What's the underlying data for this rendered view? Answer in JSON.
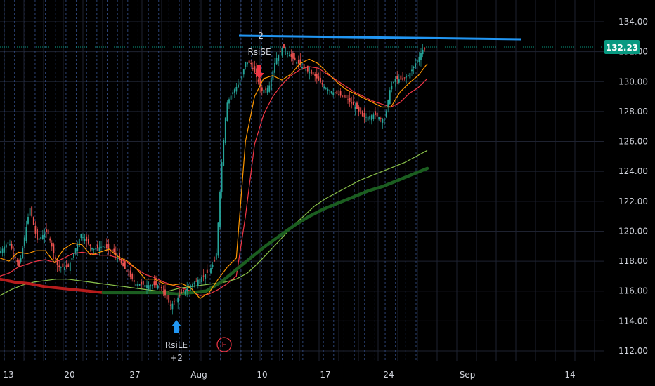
{
  "chart_data": {
    "type": "candlestick",
    "y_axis": {
      "ticks": [
        "134.00",
        "132.00",
        "130.00",
        "128.00",
        "126.00",
        "124.00",
        "122.00",
        "120.00",
        "118.00",
        "116.00",
        "114.00",
        "112.00"
      ],
      "range": [
        111.4,
        135.3
      ]
    },
    "x_axis": {
      "ticks": [
        "13",
        "20",
        "27",
        "Aug",
        "10",
        "17",
        "24",
        "Sep",
        "14"
      ]
    },
    "last_price": {
      "label": "132.23",
      "value": 132.23,
      "color": "#089981"
    },
    "signals": [
      {
        "label": "RsiSE",
        "quantity": "-2",
        "direction": "short",
        "color": "#f23645",
        "price": 130.5
      },
      {
        "label": "RsiLE",
        "quantity": "+2",
        "direction": "long",
        "color": "#2196f3",
        "price": 114.8
      }
    ],
    "event_marker": {
      "label": "E",
      "color": "#f23645"
    },
    "trendline": {
      "color": "#2196f3",
      "from_price": 133.05,
      "to_price": 132.85
    },
    "series": [
      {
        "role": "ema-fast",
        "color": "#ff9800",
        "values": [
          118.2,
          118.0,
          118.6,
          118.5,
          118.7,
          118.7,
          117.9,
          118.8,
          119.2,
          119.1,
          118.4,
          118.6,
          118.8,
          118.3,
          118.0,
          117.5,
          116.8,
          116.8,
          116.5,
          116.4,
          116.5,
          116.2,
          115.5,
          115.9,
          116.8,
          117.6,
          118.2,
          126.0,
          129.0,
          130.2,
          130.4,
          130.1,
          130.5,
          131.2,
          131.5,
          131.2,
          130.6,
          130.0,
          129.5,
          129.2,
          128.9,
          128.6,
          128.3,
          128.3,
          129.3,
          129.9,
          130.4,
          131.2
        ]
      },
      {
        "role": "ema-slow",
        "color": "#f23645",
        "values": [
          117.0,
          117.2,
          117.6,
          117.8,
          118.0,
          118.1,
          117.9,
          118.2,
          118.5,
          118.6,
          118.5,
          118.4,
          118.4,
          118.2,
          117.9,
          117.5,
          117.1,
          116.9,
          116.6,
          116.4,
          116.2,
          116.0,
          115.7,
          115.8,
          116.1,
          116.5,
          117.0,
          121.0,
          125.8,
          127.8,
          129.0,
          129.8,
          130.4,
          130.8,
          131.0,
          130.9,
          130.5,
          130.1,
          129.7,
          129.3,
          129.0,
          128.7,
          128.5,
          128.3,
          128.6,
          129.2,
          129.6,
          130.2
        ]
      },
      {
        "role": "sma-100",
        "color": "#8bc34a",
        "values": [
          115.7,
          116.1,
          116.4,
          116.6,
          116.7,
          116.8,
          116.8,
          116.7,
          116.6,
          116.5,
          116.4,
          116.3,
          116.2,
          116.1,
          116.0,
          116.0,
          116.2,
          116.3,
          116.4,
          116.5,
          116.6,
          116.8,
          117.2,
          117.9,
          118.7,
          119.5,
          120.3,
          121.0,
          121.7,
          122.2,
          122.6,
          123.0,
          123.4,
          123.7,
          124.0,
          124.3,
          124.6,
          125.0,
          125.4
        ]
      },
      {
        "role": "sma-200",
        "color": "#1b5e20",
        "values": [
          116.8,
          116.6,
          116.5,
          116.3,
          116.2,
          116.1,
          116.0,
          115.9,
          115.9,
          115.9,
          115.9,
          115.9,
          115.8,
          115.9,
          116.0,
          116.6,
          117.4,
          118.2,
          119.0,
          119.7,
          120.4,
          121.0,
          121.5,
          121.9,
          122.3,
          122.7,
          123.0,
          123.4,
          123.8,
          124.2
        ]
      }
    ]
  }
}
